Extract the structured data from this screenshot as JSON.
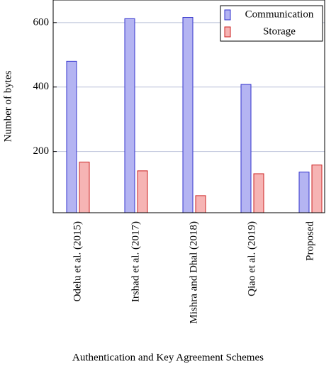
{
  "chart_data": {
    "type": "bar",
    "x_label": "Authentication and Key Agreement Schemes",
    "y_label": "Number of bytes",
    "categories": [
      "Odelu et al. (2015)",
      "Irshad et al. (2017)",
      "Mishra and Dhal (2018)",
      "Qiao et al. (2019)",
      "Proposed"
    ],
    "series": [
      {
        "name": "Communication",
        "color": "#b4b4f2",
        "values": [
          480,
          612,
          616,
          408,
          136
        ]
      },
      {
        "name": "Storage",
        "color": "#f6b4b4",
        "values": [
          167,
          140,
          63,
          131,
          158
        ]
      }
    ],
    "ylim": [
      10,
      670
    ],
    "yticks": [
      200,
      400,
      600
    ],
    "grid": true,
    "legend": "upper right"
  }
}
